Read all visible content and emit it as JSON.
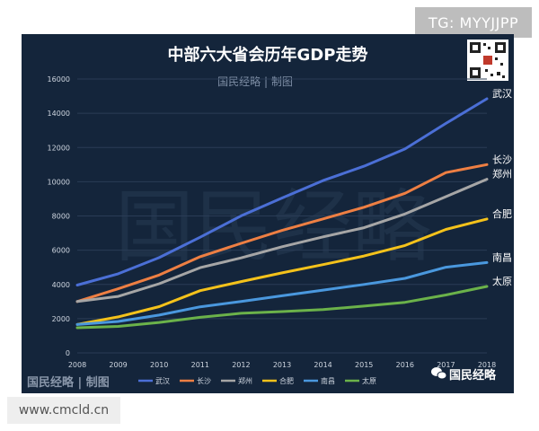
{
  "badge": {
    "text": "TG: MYYJJPP"
  },
  "footer": {
    "text": "www.cmcld.cn"
  },
  "watermark": {
    "main": "国民经略",
    "subtitle": "国民经略 | 制图",
    "bottom_left": "国民经略 | 制图",
    "wechat": "国民经略"
  },
  "colors": {
    "panel_bg": "#14253b",
    "grid": "#2a3c56",
    "text": "#cfd6e0"
  },
  "chart_data": {
    "type": "line",
    "title": "中部六大省会历年GDP走势",
    "xlabel": "",
    "ylabel": "",
    "x": [
      "2008",
      "2009",
      "2010",
      "2011",
      "2012",
      "2013",
      "2014",
      "2015",
      "2016",
      "2017",
      "2018"
    ],
    "ylim": [
      0,
      16000
    ],
    "yticks": [
      "0",
      "2000",
      "4000",
      "6000",
      "8000",
      "10000",
      "12000",
      "14000",
      "16000"
    ],
    "grid": true,
    "legend": "bottom",
    "series": [
      {
        "name": "武汉",
        "color": "#4b6fd6",
        "values": [
          3960,
          4621,
          5566,
          6756,
          8004,
          9051,
          10069,
          10905,
          11913,
          13410,
          14847
        ]
      },
      {
        "name": "长沙",
        "color": "#ee7f43",
        "values": [
          3001,
          3745,
          4547,
          5619,
          6400,
          7153,
          7825,
          8510,
          9324,
          10536,
          11003
        ]
      },
      {
        "name": "郑州",
        "color": "#a6a6a6",
        "values": [
          3004,
          3300,
          4041,
          4980,
          5550,
          6202,
          6777,
          7312,
          8114,
          9130,
          10143
        ]
      },
      {
        "name": "合肥",
        "color": "#f4c21b",
        "values": [
          1665,
          2102,
          2702,
          3637,
          4164,
          4673,
          5158,
          5660,
          6274,
          7213,
          7823
        ]
      },
      {
        "name": "南昌",
        "color": "#4a98de",
        "values": [
          1660,
          1838,
          2207,
          2689,
          3001,
          3336,
          3668,
          4000,
          4355,
          5003,
          5275
        ]
      },
      {
        "name": "太原",
        "color": "#6bb24a",
        "values": [
          1468,
          1545,
          1778,
          2080,
          2311,
          2413,
          2531,
          2735,
          2956,
          3382,
          3884
        ]
      }
    ]
  }
}
